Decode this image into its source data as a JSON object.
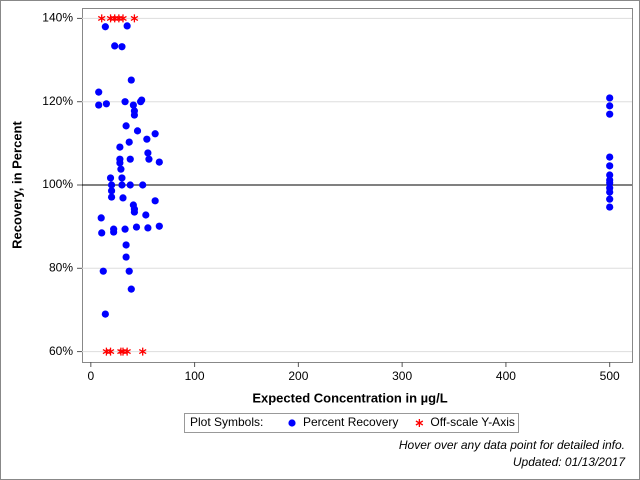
{
  "chart_data": {
    "type": "scatter",
    "x_label": "Expected Concentration in µg/L",
    "y_label": "Recovery, in Percent",
    "xlim": [
      -8.5,
      521.5
    ],
    "ylim": [
      57.5,
      142.5
    ],
    "xticks": [
      0,
      100,
      200,
      300,
      400,
      500
    ],
    "yticks": [
      {
        "value": 60,
        "label": "60%"
      },
      {
        "value": 80,
        "label": "80%"
      },
      {
        "value": 100,
        "label": "100%"
      },
      {
        "value": 120,
        "label": "120%"
      },
      {
        "value": 140,
        "label": "140%"
      }
    ],
    "grid": true,
    "reference_line": 100,
    "legend_title": "Plot Symbols:",
    "series": [
      {
        "name": "Percent Recovery",
        "color": "#0000ff",
        "marker": "circle",
        "x": [
          7.6,
          7.6,
          15,
          14,
          23,
          30,
          35,
          39,
          33,
          48,
          49,
          41,
          42,
          42,
          34,
          45,
          62,
          28,
          54,
          37,
          55,
          28,
          28,
          38,
          56,
          66,
          29,
          19,
          30,
          20,
          30,
          38,
          50,
          20,
          20,
          31,
          62,
          41,
          42,
          42,
          53,
          10,
          22,
          22,
          33,
          44,
          55,
          66,
          10.5,
          34,
          34,
          37,
          12,
          39,
          14,
          500,
          500,
          500,
          500,
          500,
          500,
          500,
          500,
          500,
          500,
          500,
          500
        ],
        "values": [
          122.3,
          119.2,
          119.5,
          138,
          133.4,
          133.2,
          138.2,
          125.2,
          120,
          120,
          120.4,
          119.2,
          117.8,
          116.8,
          114.2,
          113,
          112.3,
          109.1,
          111,
          110.3,
          107.7,
          106.2,
          105.3,
          106.2,
          106.2,
          105.5,
          103.8,
          101.7,
          101.7,
          100,
          100,
          100,
          100,
          98.6,
          97.1,
          96.9,
          96.2,
          95.2,
          94.2,
          93.5,
          92.8,
          92.1,
          89.4,
          88.7,
          89.4,
          89.9,
          89.7,
          90.1,
          88.5,
          85.6,
          82.7,
          79.3,
          79.3,
          75,
          69,
          120.9,
          119,
          117,
          106.7,
          104.6,
          102.4,
          101.2,
          100.5,
          99.3,
          98.3,
          96.6,
          94.7
        ]
      },
      {
        "name": "Off-scale Y-Axis",
        "color": "#ff0000",
        "marker": "asterisk",
        "x": [
          10.5,
          19,
          23,
          27,
          31,
          42,
          15,
          19,
          29,
          31,
          35,
          50
        ],
        "values": [
          140,
          140,
          140,
          140,
          140,
          140,
          60,
          60,
          60,
          60,
          60,
          60
        ]
      }
    ],
    "notes": [
      "Hover over any data point for detailed info.",
      "Updated: 01/13/2017"
    ]
  }
}
